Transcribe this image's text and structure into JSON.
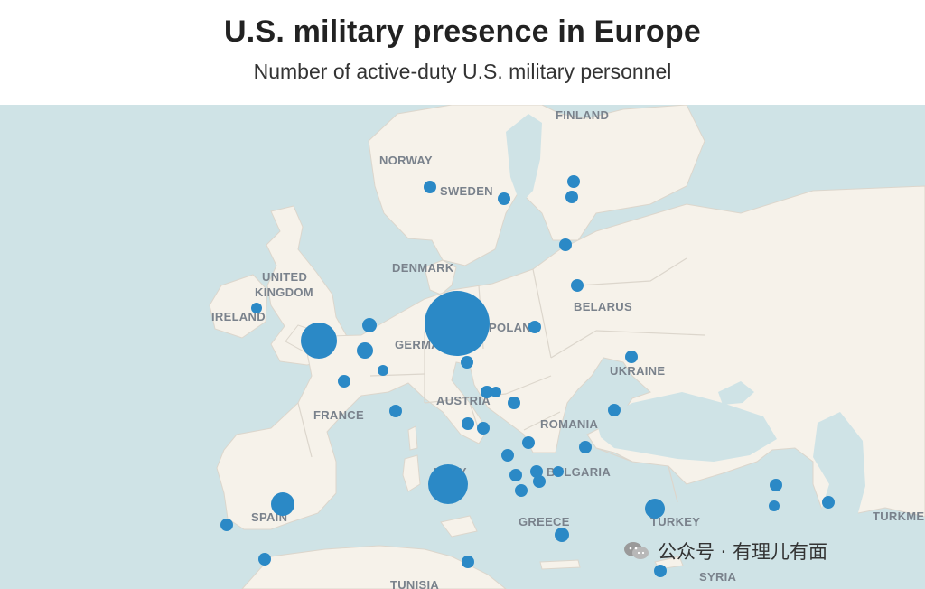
{
  "header": {
    "title": "U.S. military presence in Europe",
    "subtitle": "Number of active-duty U.S. military personnel"
  },
  "colors": {
    "sea": "#cfe3e6",
    "land": "#f6f2ea",
    "border": "#dcd6cc",
    "bubble": "#2b89c6",
    "label": "#7a828c"
  },
  "map": {
    "country_labels": [
      "FINLAND",
      "NORWAY",
      "SWEDEN",
      "DENMARK",
      "UNITED",
      "KINGDOM",
      "IRELAND",
      "POLAND",
      "BELARUS",
      "GERMANY",
      "UKRAINE",
      "AUSTRIA",
      "FRANCE",
      "ROMANIA",
      "ITALY",
      "BULGARIA",
      "SPAIN",
      "GREECE",
      "TURKEY",
      "TURKMEN",
      "SYRIA",
      "TUNISIA"
    ],
    "bubble_size_levels": [
      "large",
      "medium",
      "small"
    ]
  },
  "watermark": {
    "text": "公众号 · 有理儿有面",
    "icon": "wechat-icon"
  }
}
